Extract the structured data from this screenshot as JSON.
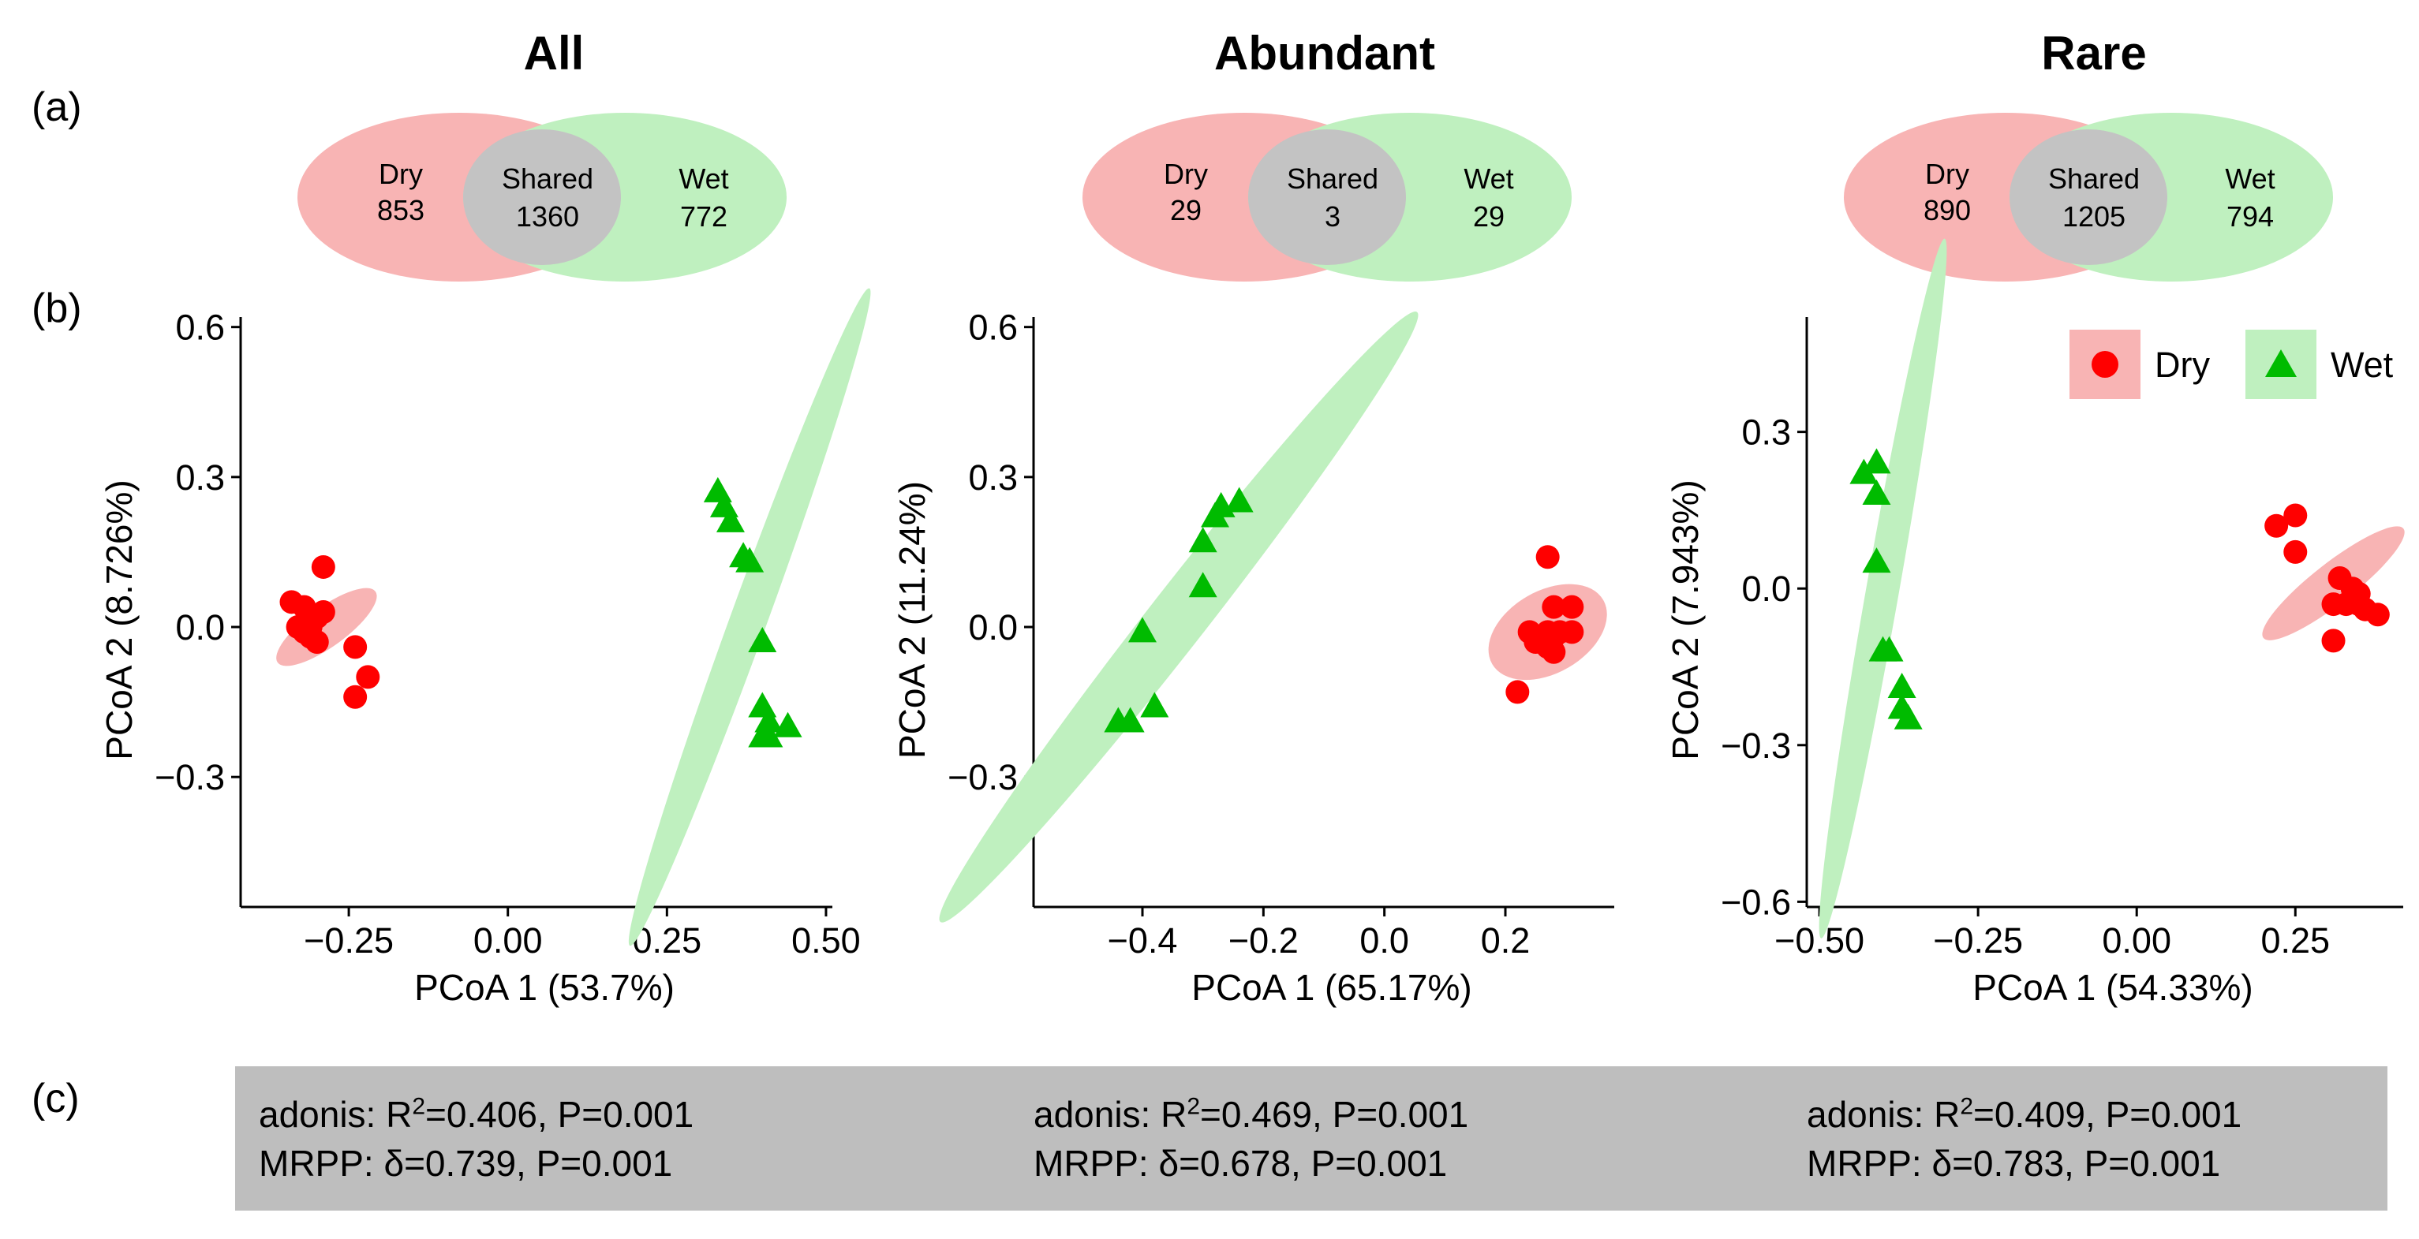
{
  "panel_labels": {
    "a": "(a)",
    "b": "(b)",
    "c": "(c)"
  },
  "colors": {
    "dry": "#ff0000",
    "wet": "#00bb00",
    "dry_fill": "#f8b4b4",
    "wet_fill": "#bff0bf",
    "shared_fill": "#c3c3c3",
    "stats_bg": "#bebebe"
  },
  "legend": {
    "dry_label": "Dry",
    "wet_label": "Wet",
    "dry_shape": "circle",
    "wet_shape": "triangle"
  },
  "venn": [
    {
      "title": "All",
      "dry_label": "Dry",
      "dry_count": "853",
      "shared_label": "Shared",
      "shared_count": "1360",
      "wet_label": "Wet",
      "wet_count": "772"
    },
    {
      "title": "Abundant",
      "dry_label": "Dry",
      "dry_count": "29",
      "shared_label": "Shared",
      "shared_count": "3",
      "wet_label": "Wet",
      "wet_count": "29"
    },
    {
      "title": "Rare",
      "dry_label": "Dry",
      "dry_count": "890",
      "shared_label": "Shared",
      "shared_count": "1205",
      "wet_label": "Wet",
      "wet_count": "794"
    }
  ],
  "stats": [
    {
      "adonis_prefix": "adonis: R",
      "adonis_sup": "2",
      "adonis_suffix": "=0.406, P=0.001",
      "mrpp": "MRPP: δ=0.739, P=0.001"
    },
    {
      "adonis_prefix": "adonis: R",
      "adonis_sup": "2",
      "adonis_suffix": "=0.469, P=0.001",
      "mrpp": "MRPP: δ=0.678, P=0.001"
    },
    {
      "adonis_prefix": "adonis: R",
      "adonis_sup": "2",
      "adonis_suffix": "=0.409, P=0.001",
      "mrpp": "MRPP: δ=0.783, P=0.001"
    }
  ],
  "chart_data": [
    {
      "type": "scatter",
      "title": "All",
      "xlabel": "PCoA 1 (53.7%)",
      "ylabel": "PCoA 2 (8.726%)",
      "xlim": [
        -0.42,
        0.51
      ],
      "ylim": [
        -0.56,
        0.62
      ],
      "xticks": [
        -0.25,
        0.0,
        0.25,
        0.5
      ],
      "xtick_labels": [
        "-0.25",
        "0.00",
        "0.25",
        "0.50"
      ],
      "yticks": [
        -0.3,
        0.0,
        0.3,
        0.6
      ],
      "ytick_labels": [
        "-0.3",
        "0.0",
        "0.3",
        "0.6"
      ],
      "series": [
        {
          "name": "Dry",
          "shape": "circle",
          "points": [
            [
              -0.34,
              0.05
            ],
            [
              -0.29,
              0.12
            ],
            [
              -0.32,
              0.04
            ],
            [
              -0.33,
              0.0
            ],
            [
              -0.31,
              0.0
            ],
            [
              -0.3,
              0.02
            ],
            [
              -0.29,
              0.03
            ],
            [
              -0.31,
              -0.02
            ],
            [
              -0.3,
              -0.03
            ],
            [
              -0.32,
              -0.01
            ],
            [
              -0.24,
              -0.04
            ],
            [
              -0.22,
              -0.1
            ],
            [
              -0.24,
              -0.14
            ]
          ],
          "ellipse": {
            "cx": -0.285,
            "cy": 0.0,
            "rx": 0.095,
            "ry": 0.031,
            "angle_deg": -36
          }
        },
        {
          "name": "Wet",
          "shape": "triangle",
          "points": [
            [
              0.33,
              0.27
            ],
            [
              0.34,
              0.24
            ],
            [
              0.35,
              0.21
            ],
            [
              0.37,
              0.14
            ],
            [
              0.38,
              0.13
            ],
            [
              0.4,
              -0.03
            ],
            [
              0.4,
              -0.16
            ],
            [
              0.41,
              -0.19
            ],
            [
              0.4,
              -0.22
            ],
            [
              0.41,
              -0.22
            ],
            [
              0.44,
              -0.2
            ]
          ],
          "ellipse": {
            "cx": 0.38,
            "cy": 0.02,
            "rx": 0.55,
            "ry": 0.029,
            "angle_deg": -70
          }
        }
      ]
    },
    {
      "type": "scatter",
      "title": "Abundant",
      "xlabel": "PCoA 1 (65.17%)",
      "ylabel": "PCoA 2 (11.24%)",
      "xlim": [
        -0.58,
        0.38
      ],
      "ylim": [
        -0.56,
        0.62
      ],
      "xticks": [
        -0.4,
        -0.2,
        0.0,
        0.2
      ],
      "xtick_labels": [
        "-0.4",
        "-0.2",
        "0.0",
        "0.2"
      ],
      "yticks": [
        -0.3,
        0.0,
        0.3,
        0.6
      ],
      "ytick_labels": [
        "-0.3",
        "0.0",
        "0.3",
        "0.6"
      ],
      "series": [
        {
          "name": "Dry",
          "shape": "circle",
          "points": [
            [
              0.27,
              0.14
            ],
            [
              0.28,
              0.04
            ],
            [
              0.31,
              0.04
            ],
            [
              0.24,
              -0.01
            ],
            [
              0.25,
              -0.03
            ],
            [
              0.26,
              -0.02
            ],
            [
              0.27,
              -0.01
            ],
            [
              0.28,
              -0.02
            ],
            [
              0.29,
              -0.01
            ],
            [
              0.31,
              -0.01
            ],
            [
              0.27,
              -0.04
            ],
            [
              0.28,
              -0.05
            ],
            [
              0.22,
              -0.13
            ]
          ],
          "ellipse": {
            "cx": 0.27,
            "cy": -0.01,
            "rx": 0.106,
            "ry": 0.068,
            "angle_deg": -30
          }
        },
        {
          "name": "Wet",
          "shape": "triangle",
          "points": [
            [
              -0.24,
              0.25
            ],
            [
              -0.27,
              0.24
            ],
            [
              -0.28,
              0.22
            ],
            [
              -0.3,
              0.17
            ],
            [
              -0.3,
              0.08
            ],
            [
              -0.4,
              -0.01
            ],
            [
              -0.38,
              -0.16
            ],
            [
              -0.42,
              -0.19
            ],
            [
              -0.44,
              -0.19
            ]
          ],
          "ellipse": {
            "cx": -0.34,
            "cy": 0.02,
            "rx": 0.64,
            "ry": 0.048,
            "angle_deg": -52
          }
        }
      ]
    },
    {
      "type": "scatter",
      "title": "Rare",
      "xlabel": "PCoA 1 (54.33%)",
      "ylabel": "PCoA 2 (7.943%)",
      "xlim": [
        -0.52,
        0.42
      ],
      "ylim": [
        -0.61,
        0.52
      ],
      "xticks": [
        -0.5,
        -0.25,
        0.0,
        0.25
      ],
      "xtick_labels": [
        "-0.50",
        "-0.25",
        "0.00",
        "0.25"
      ],
      "yticks": [
        -0.6,
        -0.3,
        0.0,
        0.3
      ],
      "ytick_labels": [
        "-0.6",
        "-0.3",
        "0.0",
        "0.3"
      ],
      "series": [
        {
          "name": "Dry",
          "shape": "circle",
          "points": [
            [
              0.25,
              0.14
            ],
            [
              0.22,
              0.12
            ],
            [
              0.25,
              0.07
            ],
            [
              0.32,
              0.02
            ],
            [
              0.34,
              0.0
            ],
            [
              0.35,
              -0.01
            ],
            [
              0.33,
              -0.03
            ],
            [
              0.35,
              -0.03
            ],
            [
              0.36,
              -0.04
            ],
            [
              0.38,
              -0.05
            ],
            [
              0.31,
              -0.03
            ],
            [
              0.31,
              -0.1
            ]
          ],
          "ellipse": {
            "cx": 0.31,
            "cy": 0.01,
            "rx": 0.14,
            "ry": 0.032,
            "angle_deg": -38
          }
        },
        {
          "name": "Wet",
          "shape": "triangle",
          "points": [
            [
              -0.41,
              0.24
            ],
            [
              -0.43,
              0.22
            ],
            [
              -0.41,
              0.18
            ],
            [
              -0.41,
              0.05
            ],
            [
              -0.39,
              -0.12
            ],
            [
              -0.4,
              -0.12
            ],
            [
              -0.37,
              -0.19
            ],
            [
              -0.37,
              -0.23
            ],
            [
              -0.36,
              -0.25
            ]
          ],
          "ellipse": {
            "cx": -0.4,
            "cy": 0.0,
            "rx": 0.56,
            "ry": 0.026,
            "angle_deg": -80
          }
        }
      ]
    }
  ]
}
